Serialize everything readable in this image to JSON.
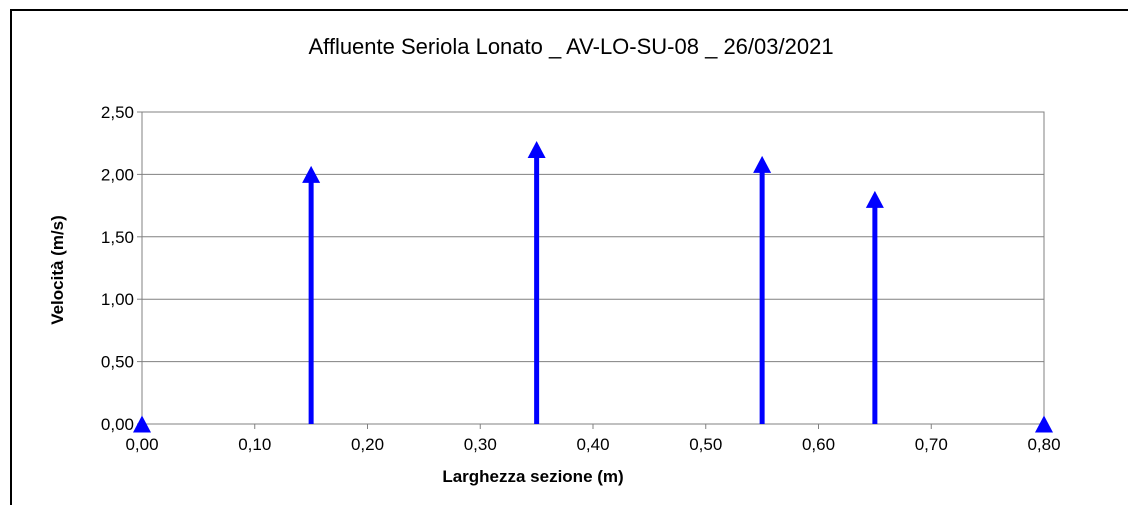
{
  "chart_data": {
    "type": "scatter",
    "title": "Affluente Seriola Lonato _ AV-LO-SU-08 _ 26/03/2021",
    "xlabel": "Larghezza sezione (m)",
    "ylabel": "Velocità (m/s)",
    "xlim": [
      0,
      0.8
    ],
    "ylim": [
      0,
      2.5
    ],
    "x_ticks": [
      "0,00",
      "0,10",
      "0,20",
      "0,30",
      "0,40",
      "0,50",
      "0,60",
      "0,70",
      "0,80"
    ],
    "y_ticks": [
      "0,00",
      "0,50",
      "1,00",
      "1,50",
      "2,00",
      "2,50"
    ],
    "grid": "horizontal",
    "legend": "none",
    "marker": "arrow-up",
    "color": "#0000ff",
    "x": [
      0.0,
      0.15,
      0.35,
      0.55,
      0.65,
      0.8
    ],
    "y": [
      0.0,
      2.0,
      2.2,
      2.08,
      1.8,
      0.0
    ]
  }
}
